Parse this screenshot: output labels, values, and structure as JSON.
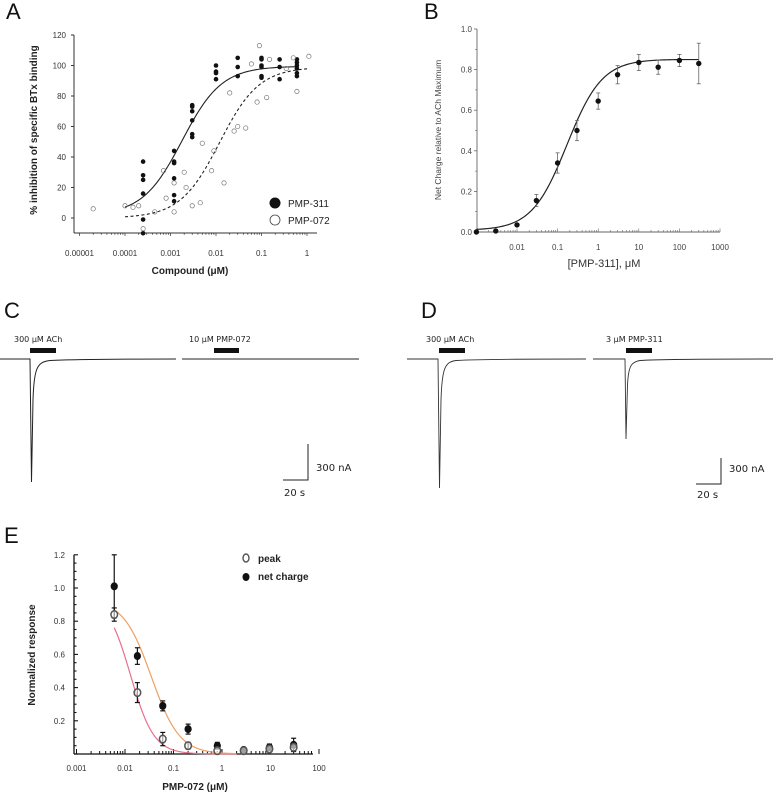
{
  "panels": {
    "A": {
      "letter": "A"
    },
    "B": {
      "letter": "B"
    },
    "C": {
      "letter": "C"
    },
    "D": {
      "letter": "D"
    },
    "E": {
      "letter": "E"
    }
  },
  "chart_data": [
    {
      "id": "A",
      "type": "scatter",
      "title": "",
      "xlabel": "Compound (μM)",
      "ylabel": "% inhibition of specific BTx binding",
      "xscale": "log",
      "xlim": [
        1e-05,
        1.5
      ],
      "ylim": [
        -10,
        120
      ],
      "xticks": [
        1e-05,
        0.0001,
        0.001,
        0.01,
        0.1,
        1
      ],
      "xtick_labels": [
        "0.00001",
        "0.0001",
        "0.001",
        "0.01",
        "0.1",
        "1"
      ],
      "yticks": [
        0,
        20,
        40,
        60,
        80,
        100,
        120
      ],
      "ytick_labels": [
        "0",
        "20",
        "40",
        "60",
        "80",
        "100",
        "120"
      ],
      "legend_position": "bottom-right",
      "series": [
        {
          "name": "PMP-311",
          "marker": "filled-circle",
          "points": [
            [
              0.00025,
              37
            ],
            [
              0.00025,
              28
            ],
            [
              0.00025,
              25
            ],
            [
              0.00025,
              16
            ],
            [
              0.00025,
              -1
            ],
            [
              0.00025,
              -10
            ],
            [
              0.0012,
              44
            ],
            [
              0.0012,
              37
            ],
            [
              0.0012,
              36
            ],
            [
              0.0012,
              26
            ],
            [
              0.0012,
              15
            ],
            [
              0.0012,
              11
            ],
            [
              0.003,
              74
            ],
            [
              0.003,
              73
            ],
            [
              0.003,
              70
            ],
            [
              0.003,
              64
            ],
            [
              0.003,
              55
            ],
            [
              0.003,
              53
            ],
            [
              0.01,
              100
            ],
            [
              0.01,
              96
            ],
            [
              0.01,
              95
            ],
            [
              0.01,
              91
            ],
            [
              0.03,
              105
            ],
            [
              0.03,
              99
            ],
            [
              0.03,
              93
            ],
            [
              0.1,
              105
            ],
            [
              0.1,
              104
            ],
            [
              0.1,
              100
            ],
            [
              0.1,
              99
            ],
            [
              0.1,
              93
            ],
            [
              0.1,
              92
            ],
            [
              0.25,
              104
            ],
            [
              0.25,
              99
            ],
            [
              0.25,
              91
            ],
            [
              0.6,
              104
            ],
            [
              0.6,
              102
            ],
            [
              0.6,
              100
            ],
            [
              0.6,
              98
            ],
            [
              0.6,
              95
            ],
            [
              0.6,
              93
            ]
          ],
          "fit": {
            "style": "solid",
            "bottom": 2,
            "top": 99.5,
            "ec50": 0.0018,
            "hill": 1.0,
            "xrange": [
              0.0001,
              0.6
            ]
          }
        },
        {
          "name": "PMP-072",
          "marker": "open-circle",
          "points": [
            [
              2e-05,
              6
            ],
            [
              0.0001,
              8
            ],
            [
              0.00015,
              7
            ],
            [
              0.0002,
              8
            ],
            [
              0.00025,
              -7
            ],
            [
              0.00045,
              4
            ],
            [
              0.0007,
              31
            ],
            [
              0.0008,
              13
            ],
            [
              0.0012,
              23
            ],
            [
              0.0012,
              4
            ],
            [
              0.002,
              30
            ],
            [
              0.0022,
              20
            ],
            [
              0.003,
              8
            ],
            [
              0.005,
              49
            ],
            [
              0.0045,
              10
            ],
            [
              0.008,
              31
            ],
            [
              0.009,
              44
            ],
            [
              0.015,
              23
            ],
            [
              0.02,
              82
            ],
            [
              0.025,
              57
            ],
            [
              0.03,
              60
            ],
            [
              0.045,
              59
            ],
            [
              0.06,
              101
            ],
            [
              0.08,
              76
            ],
            [
              0.09,
              113
            ],
            [
              0.13,
              79
            ],
            [
              0.15,
              104
            ],
            [
              0.35,
              98
            ],
            [
              0.5,
              105
            ],
            [
              0.6,
              83
            ],
            [
              1.1,
              106
            ]
          ],
          "fit": {
            "style": "dashed",
            "bottom": 0,
            "top": 99,
            "ec50": 0.012,
            "hill": 1.0,
            "xrange": [
              0.0001,
              1.1
            ]
          }
        }
      ]
    },
    {
      "id": "B",
      "type": "scatter",
      "title": "",
      "xlabel": "[PMP-311], μM",
      "ylabel": "Net Charge relative to ACh Maximum",
      "xscale": "log",
      "xlim": [
        0.001,
        1000
      ],
      "ylim": [
        0,
        1.0
      ],
      "xticks": [
        0.01,
        0.1,
        1,
        10,
        100,
        1000
      ],
      "xtick_labels": [
        "0.01",
        "0.1",
        "1",
        "10",
        "100",
        "1000"
      ],
      "yticks": [
        0,
        0.2,
        0.4,
        0.6,
        0.8,
        1.0
      ],
      "ytick_labels": [
        "0.0",
        "0.2",
        "0.4",
        "0.6",
        "0.8",
        "1.0"
      ],
      "series": [
        {
          "name": "PMP-311 net charge",
          "marker": "filled-circle",
          "points": [
            [
              0.001,
              0.0,
              0
            ],
            [
              0.003,
              0.005,
              0
            ],
            [
              0.01,
              0.035,
              0
            ],
            [
              0.03,
              0.155,
              0.03
            ],
            [
              0.1,
              0.34,
              0.05
            ],
            [
              0.3,
              0.5,
              0.05
            ],
            [
              1,
              0.645,
              0.04
            ],
            [
              3,
              0.775,
              0.045
            ],
            [
              10,
              0.835,
              0.04
            ],
            [
              30,
              0.812,
              0.035
            ],
            [
              100,
              0.845,
              0.03
            ],
            [
              300,
              0.83,
              0.1
            ]
          ],
          "point_format": [
            "x",
            "y",
            "error"
          ],
          "fit": {
            "style": "solid",
            "bottom": 0,
            "top": 0.85,
            "ec50": 0.17,
            "hill": 1.0,
            "xrange": [
              0.001,
              300
            ]
          }
        }
      ]
    },
    {
      "id": "E",
      "type": "scatter",
      "title": "",
      "xlabel": "PMP-072 (μM)",
      "ylabel": "Normalized response",
      "xscale": "log",
      "xlim": [
        0.001,
        100
      ],
      "ylim": [
        0,
        1.2
      ],
      "xticks": [
        0.001,
        0.01,
        0.1,
        1,
        10,
        100
      ],
      "xtick_labels": [
        "0.001",
        "0.01",
        "0.1",
        "1",
        "10",
        "100"
      ],
      "yticks": [
        0.2,
        0.4,
        0.6,
        0.8,
        1.0,
        1.2
      ],
      "ytick_labels": [
        "0.2",
        "0.4",
        "0.6",
        "0.8",
        "1.0",
        "1.2"
      ],
      "legend_position": "top-right",
      "series": [
        {
          "name": "peak",
          "marker": "open-circle",
          "color": "#e8708a",
          "points": [
            [
              0.006,
              0.84,
              0.04
            ],
            [
              0.018,
              0.37,
              0.06
            ],
            [
              0.06,
              0.09,
              0.04
            ],
            [
              0.2,
              0.05,
              0.02
            ],
            [
              0.8,
              0.02,
              0
            ],
            [
              2.8,
              0.02,
              0
            ],
            [
              9.5,
              0.03,
              0
            ],
            [
              30,
              0.04,
              0
            ]
          ],
          "point_format": [
            "x",
            "y",
            "error"
          ],
          "fit": {
            "style": "solid",
            "bottom": 0,
            "top": 0.95,
            "ec50": 0.013,
            "hill": 1.8,
            "xrange": [
              0.006,
              2
            ]
          }
        },
        {
          "name": "net charge",
          "marker": "filled-circle",
          "color": "#f0a060",
          "points": [
            [
              0.006,
              1.01,
              0.19
            ],
            [
              0.018,
              0.59,
              0.05
            ],
            [
              0.06,
              0.29,
              0.03
            ],
            [
              0.2,
              0.15,
              0.03
            ],
            [
              0.8,
              0.05,
              0.02
            ],
            [
              2.8,
              0.025,
              0.01
            ],
            [
              9.5,
              0.04,
              0.02
            ],
            [
              30,
              0.055,
              0.04
            ]
          ],
          "point_format": [
            "x",
            "y",
            "error"
          ],
          "fit": {
            "style": "solid",
            "bottom": 0,
            "top": 0.93,
            "ec50": 0.035,
            "hill": 1.5,
            "xrange": [
              0.006,
              2
            ]
          }
        }
      ]
    }
  ],
  "traces": {
    "C": {
      "drug1_label": "300 μM ACh",
      "drug2_label": "10 μM PMP-072",
      "scale_current": "300 nA",
      "scale_time": "20 s"
    },
    "D": {
      "drug1_label": "300 μM ACh",
      "drug2_label": "3 μM PMP-311",
      "scale_current": "300 nA",
      "scale_time": "20 s"
    }
  }
}
